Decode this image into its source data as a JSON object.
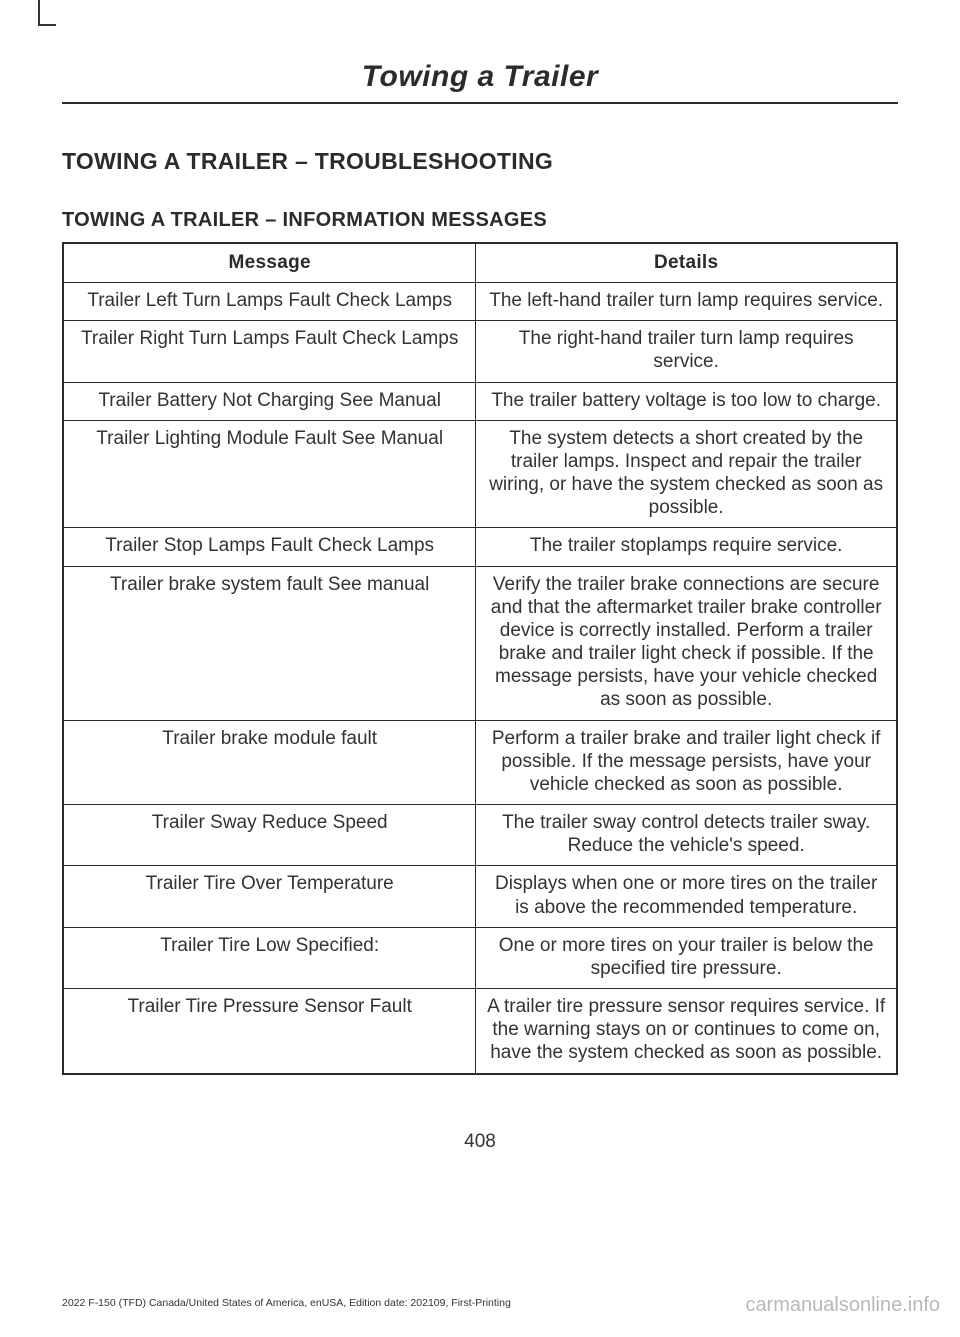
{
  "chapter_title": "Towing a Trailer",
  "heading1": "TOWING A TRAILER – TROUBLESHOOTING",
  "heading2": "TOWING A TRAILER – INFORMATION MESSAGES",
  "table": {
    "col_message": "Message",
    "col_details": "Details",
    "rows": [
      {
        "msg": "Trailer Left Turn Lamps Fault Check Lamps",
        "det": "The left-hand trailer turn lamp requires service."
      },
      {
        "msg": "Trailer Right Turn Lamps Fault Check Lamps",
        "det": "The right-hand trailer turn lamp requires service."
      },
      {
        "msg": "Trailer Battery Not Charging See Manual",
        "det": "The trailer battery voltage is too low to charge."
      },
      {
        "msg": "Trailer Lighting Module Fault See Manual",
        "det": "The system detects a short created by the trailer lamps. Inspect and repair the trailer wiring, or have the system checked as soon as possible."
      },
      {
        "msg": "Trailer Stop Lamps Fault Check Lamps",
        "det": "The trailer stoplamps require service."
      },
      {
        "msg": "Trailer brake system fault See manual",
        "det": "Verify the trailer brake connections are secure and that the aftermarket trailer brake controller device is correctly installed. Perform a trailer brake and trailer light check if possible. If the message persists, have your vehicle checked as soon as possible."
      },
      {
        "msg": "Trailer brake module fault",
        "det": "Perform a trailer brake and trailer light check if possible. If the message persists, have your vehicle checked as soon as possible."
      },
      {
        "msg": "Trailer Sway Reduce Speed",
        "det": "The trailer sway control detects trailer sway. Reduce the vehicle's speed."
      },
      {
        "msg": "Trailer Tire Over Temperature",
        "det": "Displays when one or more tires on the trailer is above the recommended temperature."
      },
      {
        "msg": "Trailer Tire Low Specified:",
        "det": "One or more tires on your trailer is below the specified tire pressure."
      },
      {
        "msg": "Trailer Tire Pressure Sensor Fault",
        "det": "A trailer tire pressure sensor requires service. If the warning stays on or continues to come on, have the system checked as soon as possible."
      }
    ]
  },
  "page_number": "408",
  "footer_left": "2022 F-150 (TFD) Canada/United States of America, enUSA, Edition date: 202109, First-Printing",
  "footer_right": "carmanualsonline.info"
}
